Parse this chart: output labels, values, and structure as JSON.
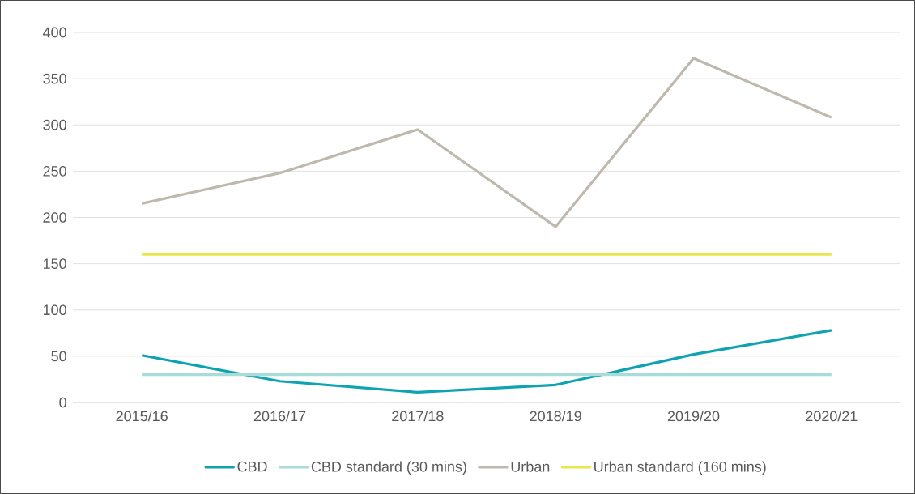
{
  "chart_data": {
    "type": "line",
    "categories": [
      "2015/16",
      "2016/17",
      "2017/18",
      "2018/19",
      "2019/20",
      "2020/21"
    ],
    "series": [
      {
        "name": "CBD",
        "color": "#0fa3b1",
        "values": [
          51,
          23,
          11,
          19,
          52,
          78
        ]
      },
      {
        "name": "CBD standard (30 mins)",
        "color": "#a8dcd9",
        "values": [
          30,
          30,
          30,
          30,
          30,
          30
        ]
      },
      {
        "name": "Urban",
        "color": "#bfb8ad",
        "values": [
          215,
          248,
          295,
          190,
          372,
          308
        ]
      },
      {
        "name": "Urban standard (160 mins)",
        "color": "#e8e84a",
        "values": [
          160,
          160,
          160,
          160,
          160,
          160
        ]
      }
    ],
    "ylim": [
      0,
      400
    ],
    "yticks": [
      0,
      50,
      100,
      150,
      200,
      250,
      300,
      350,
      400
    ],
    "grid": "y",
    "legend": "bottom",
    "marker": "none",
    "line_style": "solid"
  }
}
